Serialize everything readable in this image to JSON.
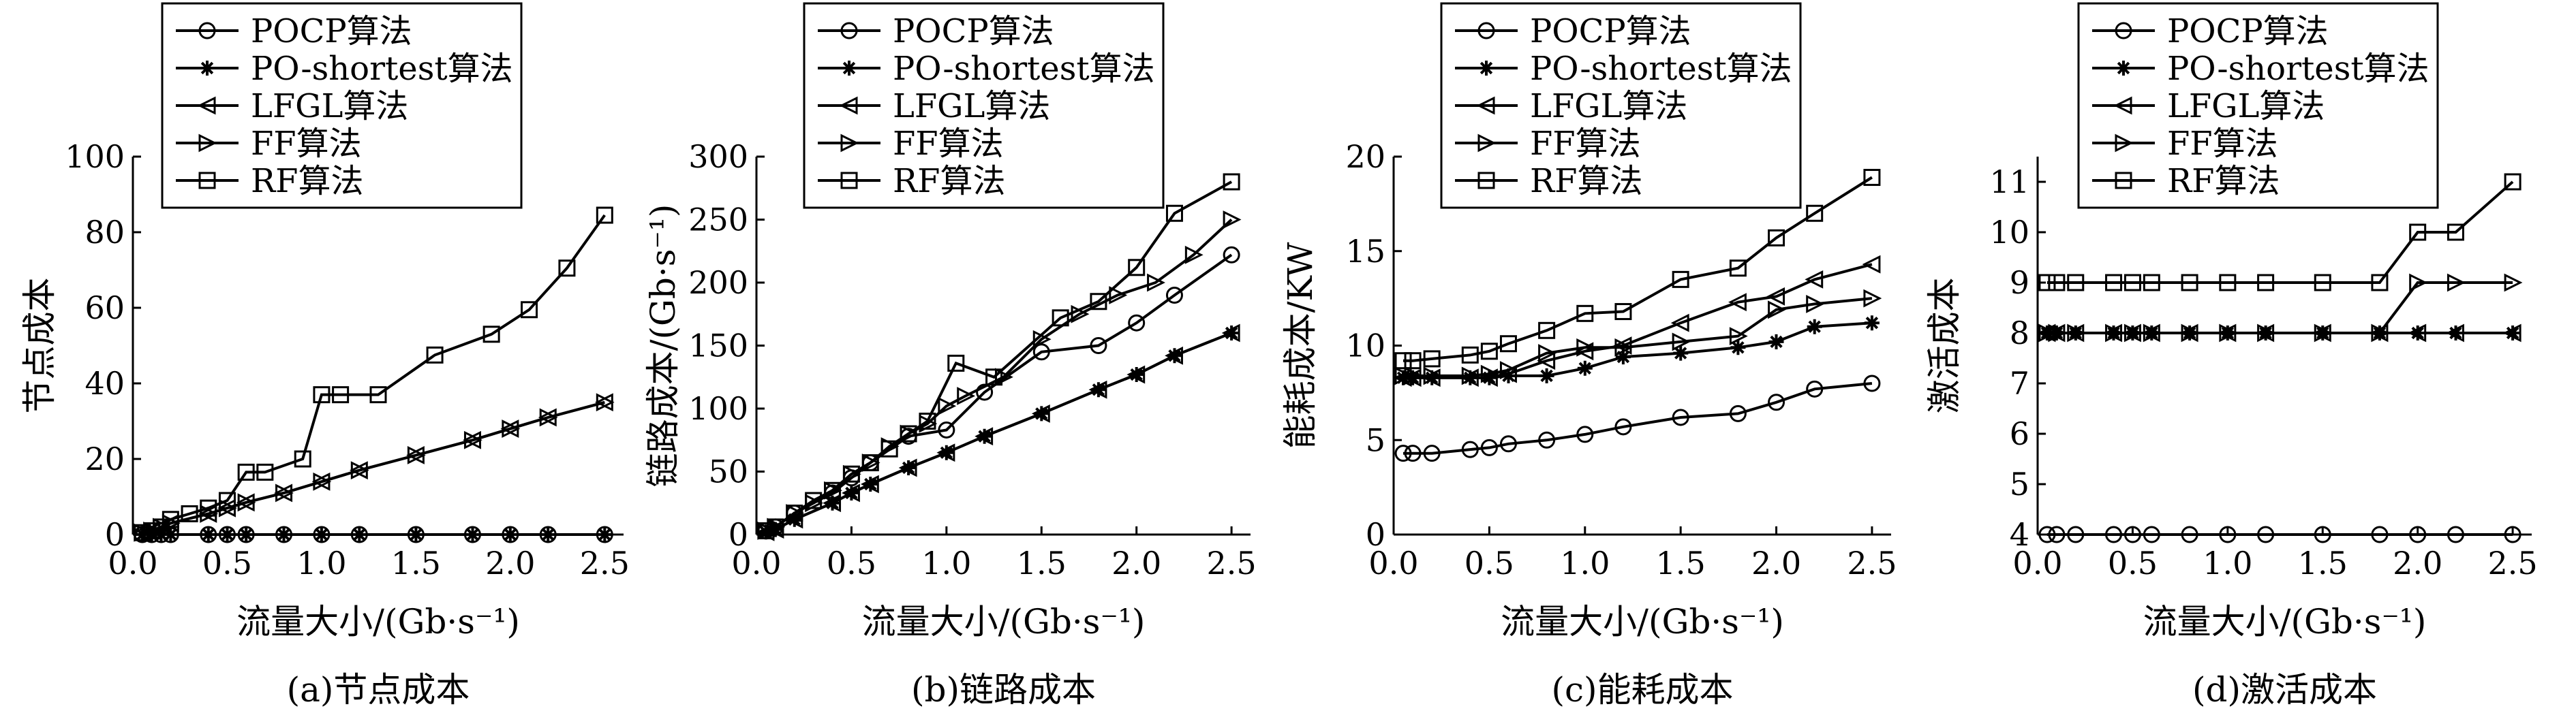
{
  "figure": {
    "series_names": [
      "POCP算法",
      "PO-shortest算法",
      "LFGL算法",
      "FF算法",
      "RF算法"
    ],
    "series_markers": [
      "circle",
      "star",
      "triangle-left",
      "triangle-right",
      "square"
    ]
  },
  "chart_data": [
    {
      "id": "a",
      "type": "line",
      "caption": "(a)节点成本",
      "xlabel": "流量大小/(Gb·s⁻¹)",
      "ylabel": "节点成本",
      "xlim": [
        0,
        2.6
      ],
      "ylim": [
        0,
        100
      ],
      "xticks": [
        "0.0",
        "0.5",
        "1.0",
        "1.5",
        "2.0",
        "2.5"
      ],
      "yticks": [
        "0",
        "20",
        "40",
        "60",
        "80",
        "100"
      ],
      "legend_position": "top",
      "series": [
        {
          "name": "POCP算法",
          "x": [
            0.05,
            0.1,
            0.15,
            0.2,
            0.4,
            0.5,
            0.6,
            0.8,
            1.0,
            1.2,
            1.5,
            1.8,
            2.0,
            2.2,
            2.5
          ],
          "y": [
            0,
            0,
            0,
            0,
            0,
            0,
            0,
            0,
            0,
            0,
            0,
            0,
            0,
            0,
            0
          ]
        },
        {
          "name": "PO-shortest算法",
          "x": [
            0.05,
            0.1,
            0.15,
            0.2,
            0.4,
            0.5,
            0.6,
            0.8,
            1.0,
            1.2,
            1.5,
            1.8,
            2.0,
            2.2,
            2.5
          ],
          "y": [
            0,
            0,
            0,
            0,
            0,
            0,
            0,
            0,
            0,
            0,
            0,
            0,
            0,
            0,
            0
          ]
        },
        {
          "name": "LFGL算法",
          "x": [
            0.05,
            0.1,
            0.15,
            0.2,
            0.4,
            0.5,
            0.6,
            0.8,
            1.0,
            1.2,
            1.5,
            1.8,
            2.0,
            2.2,
            2.5
          ],
          "y": [
            0.5,
            1,
            2,
            3,
            5.5,
            7,
            8.5,
            11,
            14,
            17,
            21,
            25,
            28,
            31,
            35
          ]
        },
        {
          "name": "FF算法",
          "x": [
            0.05,
            0.1,
            0.15,
            0.2,
            0.4,
            0.5,
            0.6,
            0.8,
            1.0,
            1.2,
            1.5,
            1.8,
            2.0,
            2.2,
            2.5
          ],
          "y": [
            0.5,
            1,
            2,
            3,
            5.5,
            7,
            8.5,
            11,
            14,
            17,
            21,
            25,
            28,
            31,
            35
          ]
        },
        {
          "name": "RF算法",
          "x": [
            0.05,
            0.1,
            0.15,
            0.2,
            0.3,
            0.4,
            0.5,
            0.6,
            0.7,
            0.9,
            1.0,
            1.1,
            1.3,
            1.6,
            1.9,
            2.1,
            2.3,
            2.5
          ],
          "y": [
            0.5,
            1,
            2,
            4,
            5.5,
            7,
            9,
            16.5,
            16.5,
            20,
            37,
            37,
            37,
            47.5,
            53,
            59.5,
            70.5,
            84.5
          ]
        }
      ]
    },
    {
      "id": "b",
      "type": "line",
      "caption": "(b)链路成本",
      "xlabel": "流量大小/(Gb·s⁻¹)",
      "ylabel": "链路成本/(Gb·s⁻¹)",
      "xlim": [
        0,
        2.6
      ],
      "ylim": [
        0,
        300
      ],
      "xticks": [
        "0.0",
        "0.5",
        "1.0",
        "1.5",
        "2.0",
        "2.5"
      ],
      "yticks": [
        "0",
        "50",
        "100",
        "150",
        "200",
        "250",
        "300"
      ],
      "legend_position": "top",
      "series": [
        {
          "name": "POCP算法",
          "x": [
            0.05,
            0.1,
            0.2,
            0.4,
            0.5,
            0.6,
            0.8,
            1.0,
            1.2,
            1.5,
            1.8,
            2.0,
            2.2,
            2.5
          ],
          "y": [
            3,
            6,
            17,
            33,
            45,
            57,
            78,
            83,
            113,
            145,
            150,
            168,
            190,
            222
          ]
        },
        {
          "name": "PO-shortest算法",
          "x": [
            0.05,
            0.1,
            0.2,
            0.4,
            0.5,
            0.6,
            0.8,
            1.0,
            1.2,
            1.5,
            1.8,
            2.0,
            2.2,
            2.5
          ],
          "y": [
            2,
            4,
            12,
            25,
            33,
            40,
            53,
            65,
            78,
            96,
            115,
            127,
            142,
            160
          ]
        },
        {
          "name": "LFGL算法",
          "x": [
            0.05,
            0.1,
            0.2,
            0.4,
            0.5,
            0.6,
            0.8,
            1.0,
            1.2,
            1.5,
            1.8,
            2.0,
            2.2,
            2.5
          ],
          "y": [
            2,
            4,
            12,
            25,
            33,
            40,
            53,
            65,
            78,
            96,
            115,
            127,
            142,
            160
          ]
        },
        {
          "name": "FF算法",
          "x": [
            0.05,
            0.1,
            0.2,
            0.3,
            0.4,
            0.5,
            0.6,
            0.7,
            0.8,
            0.9,
            1.0,
            1.1,
            1.3,
            1.5,
            1.7,
            1.9,
            2.1,
            2.3,
            2.5
          ],
          "y": [
            3,
            6,
            17,
            25,
            35,
            48,
            57,
            70,
            80,
            88,
            102,
            110,
            125,
            155,
            175,
            190,
            200,
            222,
            250
          ]
        },
        {
          "name": "RF算法",
          "x": [
            0.05,
            0.1,
            0.2,
            0.3,
            0.4,
            0.5,
            0.6,
            0.7,
            0.8,
            0.9,
            1.05,
            1.25,
            1.6,
            1.8,
            2.0,
            2.2,
            2.5
          ],
          "y": [
            3,
            6,
            17,
            27,
            35,
            48,
            57,
            68,
            80,
            90,
            136,
            125,
            172,
            185,
            212,
            255,
            280
          ]
        }
      ]
    },
    {
      "id": "c",
      "type": "line",
      "caption": "(c)能耗成本",
      "xlabel": "流量大小/(Gb·s⁻¹)",
      "ylabel": "能耗成本/KW",
      "xlim": [
        0,
        2.6
      ],
      "ylim": [
        0,
        20
      ],
      "xticks": [
        "0.0",
        "0.5",
        "1.0",
        "1.5",
        "2.0",
        "2.5"
      ],
      "yticks": [
        "0",
        "5",
        "10",
        "15",
        "20"
      ],
      "legend_position": "top",
      "series": [
        {
          "name": "POCP算法",
          "x": [
            0.05,
            0.1,
            0.2,
            0.4,
            0.5,
            0.6,
            0.8,
            1.0,
            1.2,
            1.5,
            1.8,
            2.0,
            2.2,
            2.5
          ],
          "y": [
            4.3,
            4.3,
            4.3,
            4.5,
            4.6,
            4.8,
            5.0,
            5.3,
            5.7,
            6.2,
            6.4,
            7.0,
            7.7,
            8.0
          ]
        },
        {
          "name": "PO-shortest算法",
          "x": [
            0.05,
            0.1,
            0.2,
            0.4,
            0.5,
            0.6,
            0.8,
            1.0,
            1.2,
            1.5,
            1.8,
            2.0,
            2.2,
            2.5
          ],
          "y": [
            8.3,
            8.3,
            8.3,
            8.3,
            8.3,
            8.4,
            8.4,
            8.8,
            9.4,
            9.6,
            9.9,
            10.2,
            11.0,
            11.2
          ]
        },
        {
          "name": "LFGL算法",
          "x": [
            0.05,
            0.1,
            0.2,
            0.4,
            0.5,
            0.6,
            0.8,
            1.0,
            1.2,
            1.5,
            1.8,
            2.0,
            2.2,
            2.5
          ],
          "y": [
            8.3,
            8.3,
            8.3,
            8.3,
            8.3,
            8.5,
            9.2,
            9.7,
            10.0,
            11.2,
            12.3,
            12.6,
            13.5,
            14.3
          ]
        },
        {
          "name": "FF算法",
          "x": [
            0.05,
            0.1,
            0.2,
            0.4,
            0.5,
            0.6,
            0.8,
            1.0,
            1.2,
            1.5,
            1.8,
            2.0,
            2.2,
            2.5
          ],
          "y": [
            8.4,
            8.4,
            8.4,
            8.4,
            8.5,
            8.7,
            9.6,
            9.9,
            9.9,
            10.2,
            10.5,
            11.9,
            12.2,
            12.5
          ]
        },
        {
          "name": "RF算法",
          "x": [
            0.05,
            0.1,
            0.2,
            0.4,
            0.5,
            0.6,
            0.8,
            1.0,
            1.2,
            1.5,
            1.8,
            2.0,
            2.2,
            2.5
          ],
          "y": [
            9.2,
            9.2,
            9.3,
            9.5,
            9.7,
            10.1,
            10.8,
            11.7,
            11.8,
            13.5,
            14.1,
            15.7,
            17.0,
            18.9
          ]
        }
      ]
    },
    {
      "id": "d",
      "type": "line",
      "caption": "(d)激活成本",
      "xlabel": "流量大小/(Gb·s⁻¹)",
      "ylabel": "激活成本",
      "xlim": [
        0,
        2.6
      ],
      "ylim": [
        4,
        11.5
      ],
      "xticks": [
        "0.0",
        "0.5",
        "1.0",
        "1.5",
        "2.0",
        "2.5"
      ],
      "yticks": [
        "4",
        "5",
        "6",
        "7",
        "8",
        "9",
        "10",
        "11"
      ],
      "legend_position": "top",
      "series": [
        {
          "name": "POCP算法",
          "x": [
            0.05,
            0.1,
            0.2,
            0.4,
            0.5,
            0.6,
            0.8,
            1.0,
            1.2,
            1.5,
            1.8,
            2.0,
            2.2,
            2.5
          ],
          "y": [
            4,
            4,
            4,
            4,
            4,
            4,
            4,
            4,
            4,
            4,
            4,
            4,
            4,
            4
          ]
        },
        {
          "name": "PO-shortest算法",
          "x": [
            0.05,
            0.1,
            0.2,
            0.4,
            0.5,
            0.6,
            0.8,
            1.0,
            1.2,
            1.5,
            1.8,
            2.0,
            2.2,
            2.5
          ],
          "y": [
            8,
            8,
            8,
            8,
            8,
            8,
            8,
            8,
            8,
            8,
            8,
            8,
            8,
            8
          ]
        },
        {
          "name": "LFGL算法",
          "x": [
            0.05,
            0.1,
            0.2,
            0.4,
            0.5,
            0.6,
            0.8,
            1.0,
            1.2,
            1.5,
            1.8,
            2.0,
            2.2,
            2.5
          ],
          "y": [
            8,
            8,
            8,
            8,
            8,
            8,
            8,
            8,
            8,
            8,
            8,
            8,
            8,
            8
          ]
        },
        {
          "name": "FF算法",
          "x": [
            0.05,
            0.1,
            0.2,
            0.4,
            0.5,
            0.6,
            0.8,
            1.0,
            1.2,
            1.5,
            1.8,
            2.0,
            2.2,
            2.5
          ],
          "y": [
            8,
            8,
            8,
            8,
            8,
            8,
            8,
            8,
            8,
            8,
            8,
            9,
            9,
            9
          ]
        },
        {
          "name": "RF算法",
          "x": [
            0.05,
            0.1,
            0.2,
            0.4,
            0.5,
            0.6,
            0.8,
            1.0,
            1.2,
            1.5,
            1.8,
            2.0,
            2.2,
            2.5
          ],
          "y": [
            9,
            9,
            9,
            9,
            9,
            9,
            9,
            9,
            9,
            9,
            9,
            10,
            10,
            11
          ]
        }
      ]
    }
  ]
}
